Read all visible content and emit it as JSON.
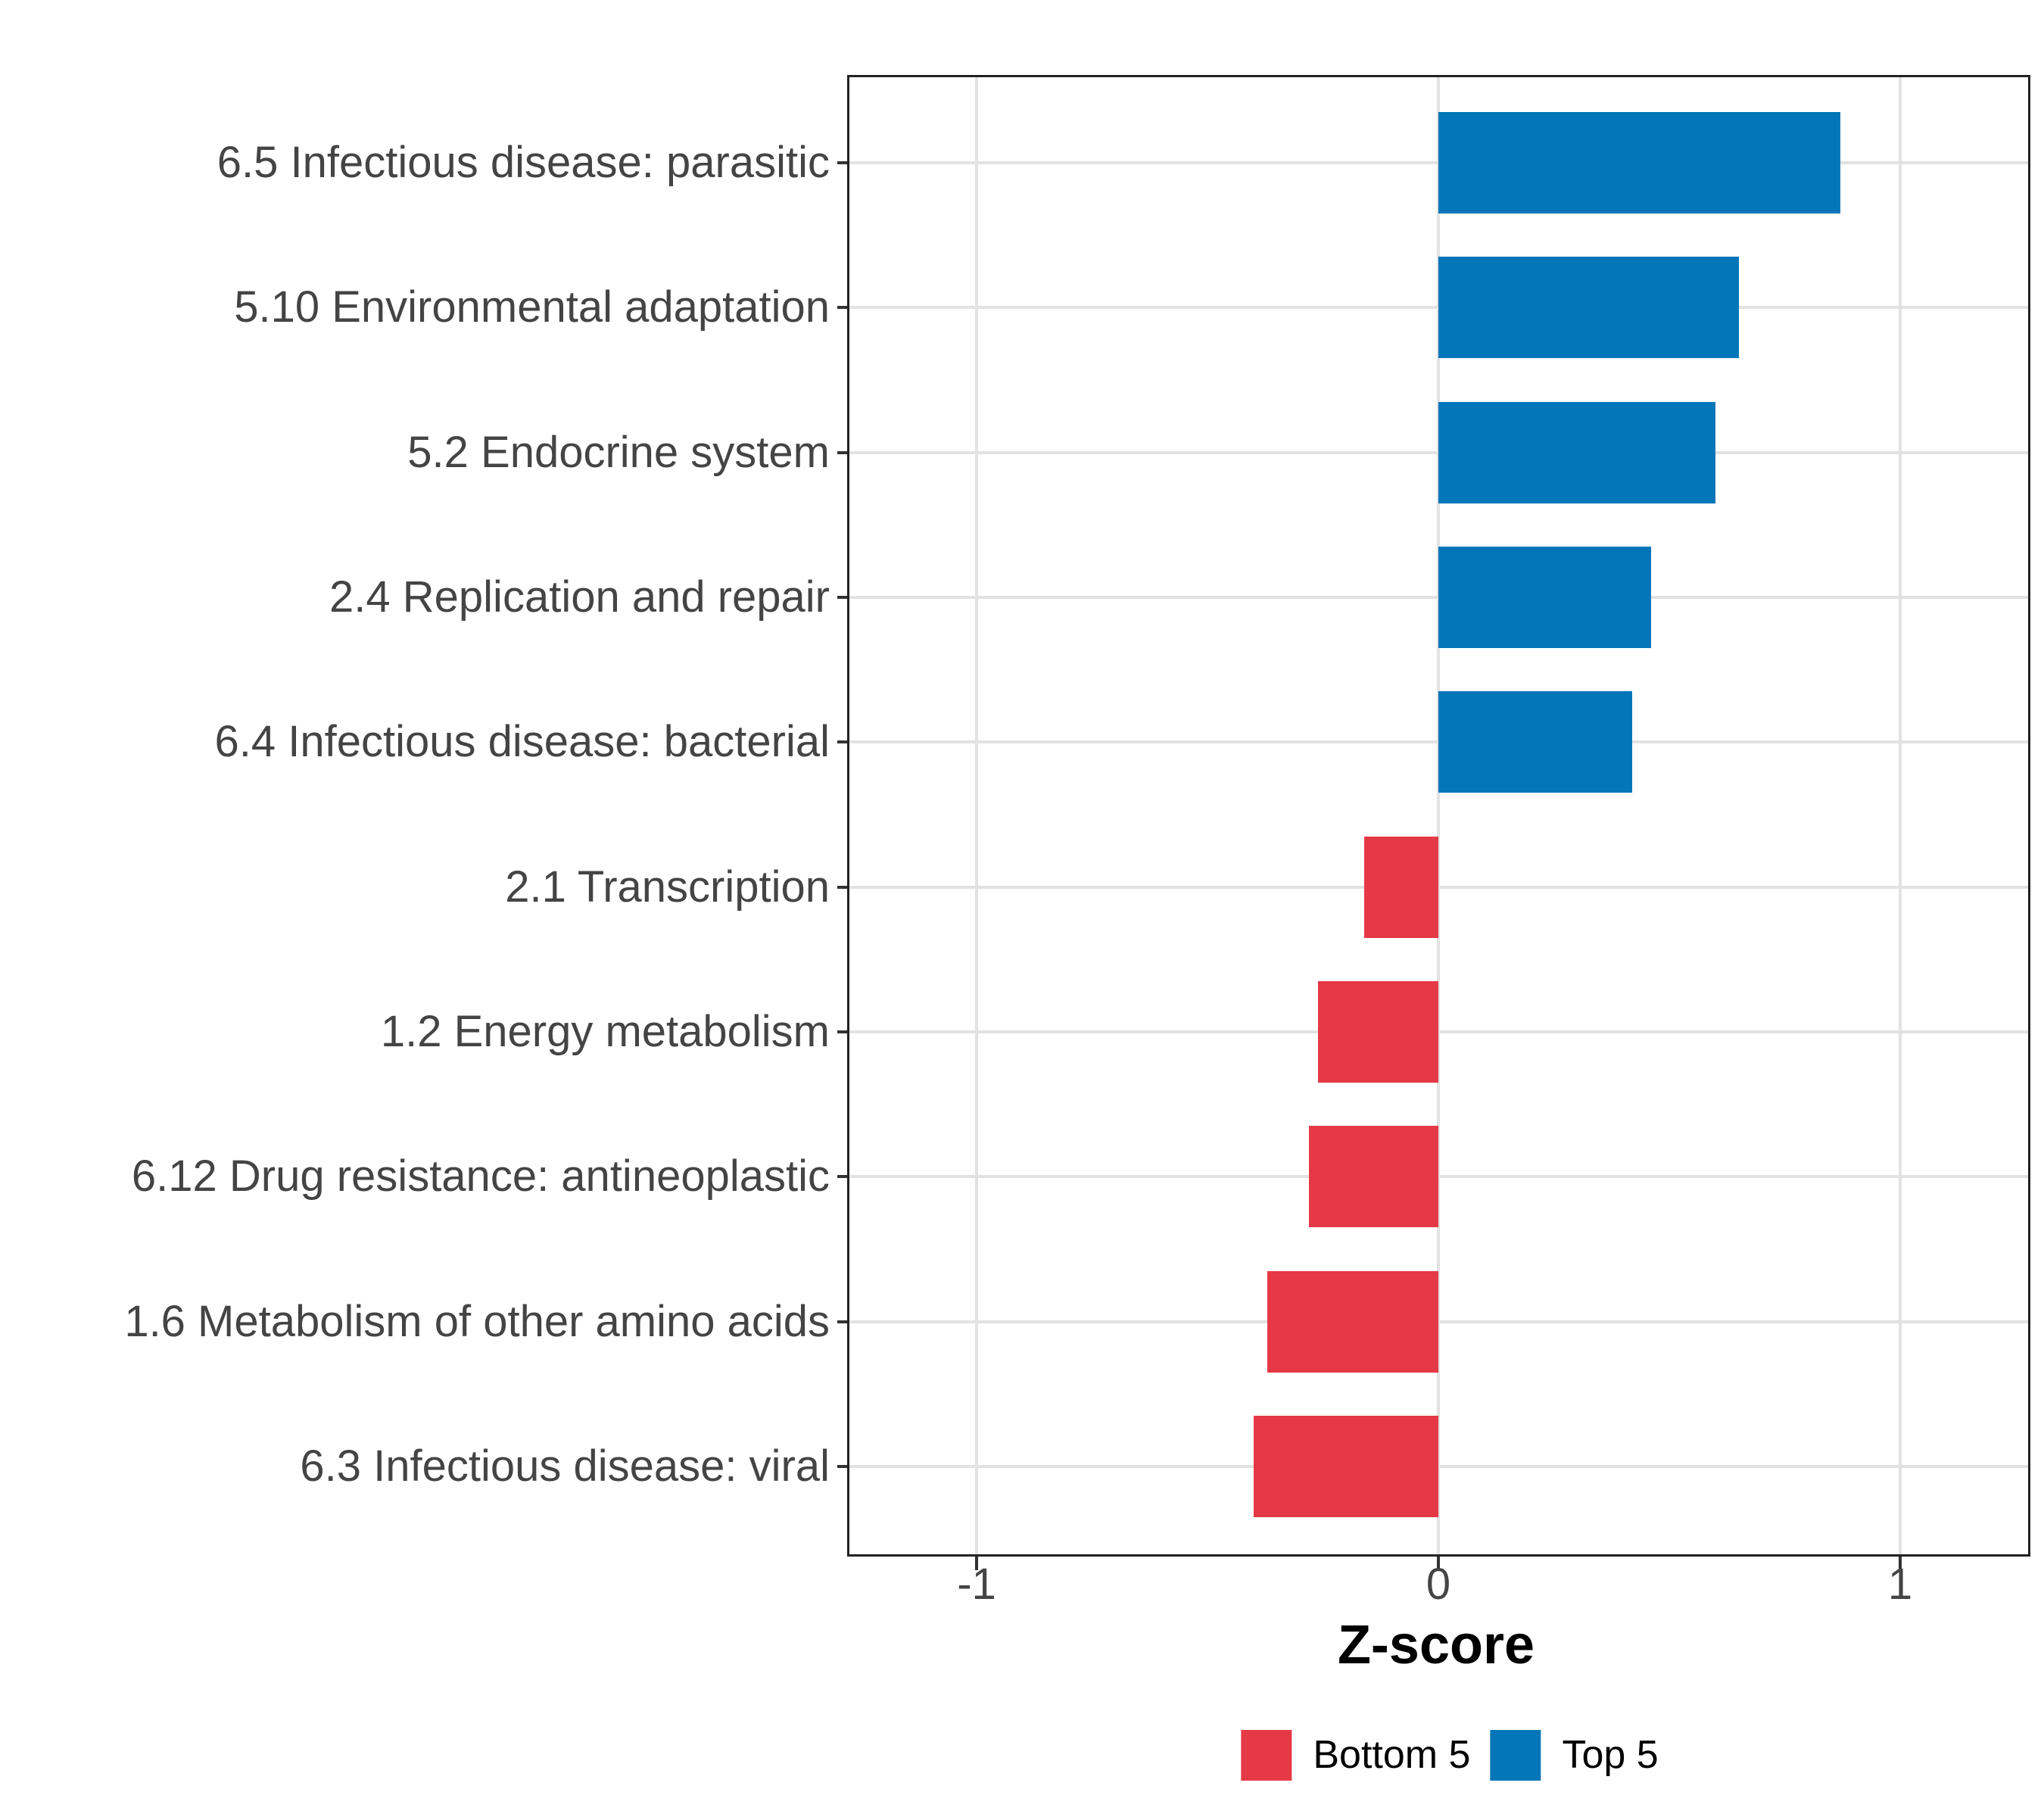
{
  "chart_data": {
    "type": "bar",
    "orientation": "horizontal",
    "title": "",
    "xlabel": "Z-score",
    "ylabel": "",
    "categories": [
      "6.5 Infectious disease: parasitic",
      "5.10 Environmental adaptation",
      "5.2 Endocrine system",
      "2.4 Replication and repair",
      "6.4 Infectious disease: bacterial",
      "2.1 Transcription",
      "1.2 Energy metabolism",
      "6.12 Drug resistance: antineoplastic",
      "1.6 Metabolism of other amino acids",
      "6.3 Infectious disease: viral"
    ],
    "values": [
      0.87,
      0.65,
      0.6,
      0.46,
      0.42,
      -0.16,
      -0.26,
      -0.28,
      -0.37,
      -0.4
    ],
    "groups": [
      "Top 5",
      "Top 5",
      "Top 5",
      "Top 5",
      "Top 5",
      "Bottom 5",
      "Bottom 5",
      "Bottom 5",
      "Bottom 5",
      "Bottom 5"
    ],
    "x_ticks": [
      {
        "label": "-1",
        "value": -1
      },
      {
        "label": "0",
        "value": 0
      },
      {
        "label": "1",
        "value": 1
      }
    ],
    "xlim": [
      -1.275,
      1.275
    ],
    "grid": true,
    "legend_position": "bottom",
    "legend": [
      {
        "label": "Bottom 5",
        "color": "#e53946"
      },
      {
        "label": "Top 5",
        "color": "#0276b8"
      }
    ],
    "colors": {
      "positive": "#0276b8",
      "negative": "#e53946",
      "gridline": "#e2e2e2",
      "axis_text": "#444444",
      "panel_border": "#222222"
    }
  }
}
